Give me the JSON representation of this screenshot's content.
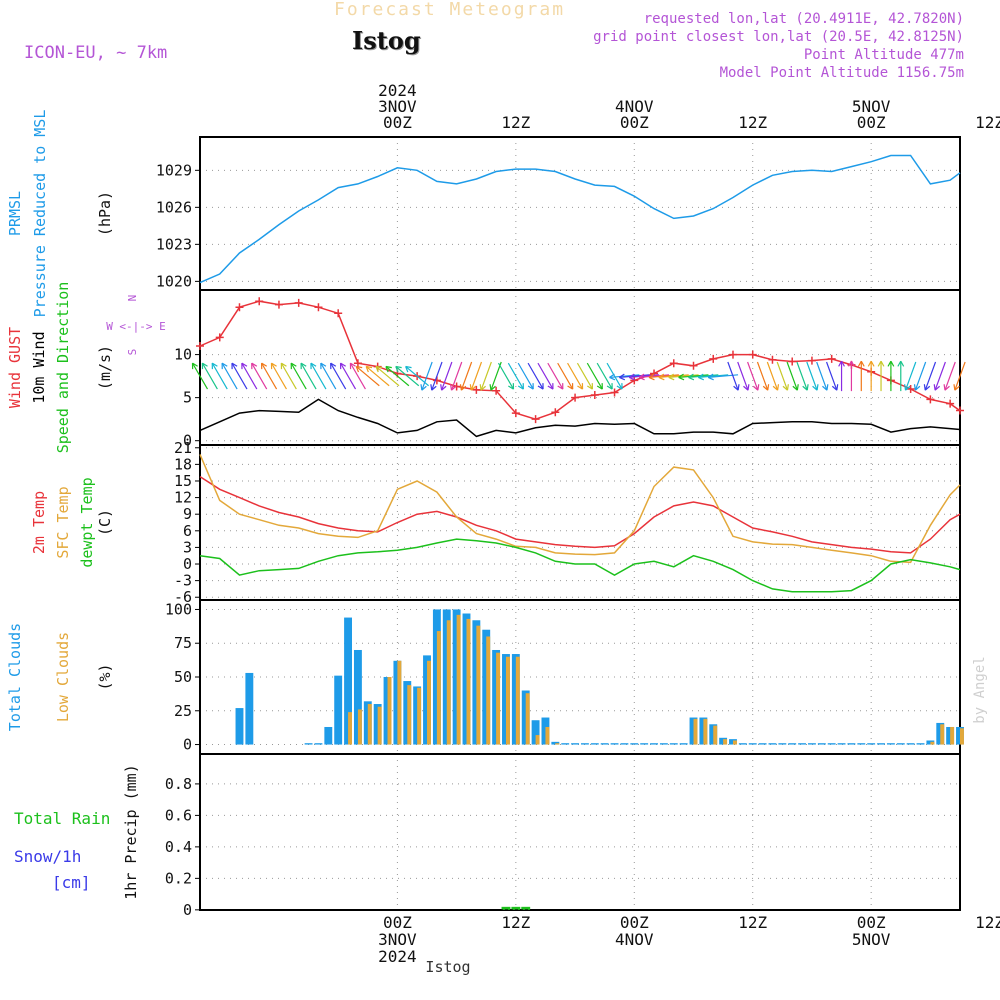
{
  "header": {
    "faint_title": "Forecast Meteogram",
    "station": "Istog",
    "model": "ICON-EU, ~ 7km",
    "info_lines": [
      "requested lon,lat (20.4911E, 42.7820N)",
      "grid point closest lon,lat (20.5E, 42.8125N)",
      "Point Altitude 477m",
      "Model Point Altitude 1156.75m"
    ]
  },
  "footer": {
    "station_label": "Istog",
    "watermark": "by Angel"
  },
  "time_axis": {
    "start_hour": -20,
    "end_hour": 57,
    "top_labels": [
      {
        "hour": 0,
        "lines": [
          "2024",
          "3NOV",
          "00Z"
        ]
      },
      {
        "hour": 12,
        "lines": [
          "12Z"
        ]
      },
      {
        "hour": 24,
        "lines": [
          "4NOV",
          "00Z"
        ]
      },
      {
        "hour": 36,
        "lines": [
          "12Z"
        ]
      },
      {
        "hour": 48,
        "lines": [
          "5NOV",
          "00Z"
        ]
      },
      {
        "hour": 60,
        "lines": [
          "12Z"
        ]
      }
    ],
    "bottom_labels": [
      {
        "hour": 0,
        "lines": [
          "00Z",
          "3NOV",
          "2024"
        ]
      },
      {
        "hour": 12,
        "lines": [
          "12Z"
        ]
      },
      {
        "hour": 24,
        "lines": [
          "00Z",
          "4NOV"
        ]
      },
      {
        "hour": 36,
        "lines": [
          "12Z"
        ]
      },
      {
        "hour": 48,
        "lines": [
          "00Z",
          "5NOV"
        ]
      },
      {
        "hour": 60,
        "lines": [
          "12Z"
        ]
      }
    ]
  },
  "colors": {
    "pressure": "#1e9be8",
    "gust": "#e8333a",
    "wind": "#000000",
    "dir_label": "#1cc01c",
    "temp2m": "#e8333a",
    "sfc": "#e3a83a",
    "dew": "#1cc01c",
    "total_cloud": "#1e9be8",
    "low_cloud": "#e3a83a",
    "rain": "#1cc01c",
    "snow": "#3a3ae8",
    "compass": "#b455d6"
  },
  "chart_data": [
    {
      "type": "line",
      "title": "PRMSL Pressure Reduced to MSL",
      "ylabels": [
        "PRMSL",
        "Pressure Reduced to MSL"
      ],
      "unit": "(hPa)",
      "ylim": [
        1019.3,
        1031.7
      ],
      "yticks": [
        1020,
        1023,
        1026,
        1029
      ],
      "series": [
        {
          "name": "PRMSL",
          "color": "#1e9be8",
          "hours": [
            -20,
            -18,
            -16,
            -14,
            -12,
            -10,
            -8,
            -6,
            -4,
            -2,
            0,
            2,
            4,
            6,
            8,
            10,
            12,
            14,
            16,
            18,
            20,
            22,
            24,
            26,
            28,
            30,
            32,
            34,
            36,
            38,
            40,
            42,
            44,
            46,
            48,
            50,
            52,
            54,
            56,
            57
          ],
          "values": [
            1019.9,
            1020.6,
            1022.3,
            1023.4,
            1024.6,
            1025.7,
            1026.6,
            1027.6,
            1027.9,
            1028.5,
            1029.2,
            1029.0,
            1028.1,
            1027.9,
            1028.3,
            1028.9,
            1029.1,
            1029.1,
            1028.9,
            1028.3,
            1027.8,
            1027.7,
            1026.9,
            1025.9,
            1025.1,
            1025.3,
            1025.9,
            1026.8,
            1027.8,
            1028.6,
            1028.9,
            1029.0,
            1028.9,
            1029.3,
            1029.7,
            1030.2,
            1030.2,
            1027.9,
            1028.2,
            1028.8
          ]
        }
      ]
    },
    {
      "type": "line",
      "title": "Wind GUST / 10m Wind Speed and Direction",
      "ylabels": [
        "Wind GUST",
        "10m Wind",
        "Speed and Direction"
      ],
      "unit": "(m/s)",
      "ylim": [
        -0.5,
        17.5
      ],
      "yticks": [
        0,
        5,
        10
      ],
      "compass": [
        "N",
        "W <-|-> E",
        "S"
      ],
      "series": [
        {
          "name": "Wind GUST",
          "color": "#e8333a",
          "marker": "+",
          "hours": [
            -20,
            -18,
            -16,
            -14,
            -12,
            -10,
            -8,
            -6,
            -4,
            -2,
            0,
            2,
            4,
            6,
            8,
            10,
            12,
            14,
            16,
            18,
            20,
            22,
            24,
            26,
            28,
            30,
            32,
            34,
            36,
            38,
            40,
            42,
            44,
            46,
            48,
            50,
            52,
            54,
            56,
            57
          ],
          "values": [
            11.0,
            12.0,
            15.5,
            16.2,
            15.8,
            16.0,
            15.5,
            14.8,
            9.0,
            8.6,
            7.8,
            7.5,
            7.0,
            6.3,
            5.9,
            5.8,
            3.2,
            2.5,
            3.3,
            5.0,
            5.3,
            5.6,
            7.0,
            7.8,
            9.0,
            8.7,
            9.5,
            10.0,
            10.0,
            9.4,
            9.2,
            9.3,
            9.5,
            8.8,
            8.0,
            7.0,
            6.0,
            4.8,
            4.3,
            3.5
          ]
        },
        {
          "name": "10m Wind",
          "color": "#000000",
          "hours": [
            -20,
            -18,
            -16,
            -14,
            -12,
            -10,
            -8,
            -6,
            -4,
            -2,
            0,
            2,
            4,
            6,
            8,
            10,
            12,
            14,
            16,
            18,
            20,
            22,
            24,
            26,
            28,
            30,
            32,
            34,
            36,
            38,
            40,
            42,
            44,
            46,
            48,
            50,
            52,
            54,
            56,
            57
          ],
          "values": [
            1.2,
            2.2,
            3.2,
            3.5,
            3.4,
            3.3,
            4.8,
            3.5,
            2.7,
            2.0,
            0.9,
            1.2,
            2.2,
            2.4,
            0.5,
            1.2,
            0.9,
            1.5,
            1.8,
            1.7,
            2.0,
            1.9,
            2.0,
            0.8,
            0.8,
            1.0,
            1.0,
            0.8,
            2.0,
            2.1,
            2.2,
            2.2,
            2.0,
            2.0,
            1.9,
            1.0,
            1.4,
            1.6,
            1.4,
            1.3
          ]
        }
      ]
    },
    {
      "type": "line",
      "title": "2m Temp / SFC Temp / dewpt Temp",
      "ylabels": [
        "2m Temp",
        "SFC Temp",
        "dewpt Temp"
      ],
      "unit": "(C)",
      "ylim": [
        -6.5,
        21.5
      ],
      "yticks": [
        -6,
        -3,
        0,
        3,
        6,
        9,
        12,
        15,
        18,
        21
      ],
      "series": [
        {
          "name": "2m Temp",
          "color": "#e8333a",
          "hours": [
            -20,
            -18,
            -16,
            -14,
            -12,
            -10,
            -8,
            -6,
            -4,
            -2,
            0,
            2,
            4,
            6,
            8,
            10,
            12,
            14,
            16,
            18,
            20,
            22,
            24,
            26,
            28,
            30,
            32,
            34,
            36,
            38,
            40,
            42,
            44,
            46,
            48,
            50,
            52,
            54,
            56,
            57
          ],
          "values": [
            15.8,
            13.5,
            12.0,
            10.5,
            9.3,
            8.5,
            7.3,
            6.5,
            6.0,
            5.8,
            7.5,
            9.0,
            9.5,
            8.5,
            7.0,
            6.0,
            4.5,
            4.0,
            3.5,
            3.2,
            3.0,
            3.3,
            5.5,
            8.5,
            10.5,
            11.2,
            10.5,
            8.5,
            6.5,
            5.8,
            5.0,
            4.0,
            3.5,
            3.0,
            2.7,
            2.2,
            2.0,
            4.5,
            8.0,
            9.0
          ]
        },
        {
          "name": "SFC Temp",
          "color": "#e3a83a",
          "hours": [
            -20,
            -18,
            -16,
            -14,
            -12,
            -10,
            -8,
            -6,
            -4,
            -2,
            0,
            2,
            4,
            6,
            8,
            10,
            12,
            14,
            16,
            18,
            20,
            22,
            24,
            26,
            28,
            30,
            32,
            34,
            36,
            38,
            40,
            42,
            44,
            46,
            48,
            50,
            52,
            54,
            56,
            57
          ],
          "values": [
            19.8,
            11.5,
            9.0,
            8.0,
            7.0,
            6.5,
            5.5,
            5.0,
            4.8,
            6.0,
            13.5,
            15.0,
            13.0,
            8.5,
            5.5,
            4.5,
            3.2,
            3.0,
            2.0,
            1.8,
            1.7,
            2.0,
            6.0,
            14.0,
            17.5,
            17.0,
            12.0,
            5.0,
            4.0,
            3.6,
            3.5,
            3.0,
            2.5,
            2.0,
            1.5,
            0.5,
            0.3,
            7.0,
            12.5,
            14.3
          ]
        },
        {
          "name": "dewpt Temp",
          "color": "#1cc01c",
          "hours": [
            -20,
            -18,
            -16,
            -14,
            -12,
            -10,
            -8,
            -6,
            -4,
            -2,
            0,
            2,
            4,
            6,
            8,
            10,
            12,
            14,
            16,
            18,
            20,
            22,
            24,
            26,
            28,
            30,
            32,
            34,
            36,
            38,
            40,
            42,
            44,
            46,
            48,
            50,
            52,
            54,
            56,
            57
          ],
          "values": [
            1.5,
            1.0,
            -2.0,
            -1.2,
            -1.0,
            -0.8,
            0.5,
            1.5,
            2.0,
            2.2,
            2.5,
            3.0,
            3.8,
            4.5,
            4.2,
            3.8,
            3.0,
            2.0,
            0.5,
            0.0,
            0.0,
            -2.0,
            0.0,
            0.5,
            -0.5,
            1.5,
            0.5,
            -1.0,
            -3.0,
            -4.5,
            -5.0,
            -5.0,
            -5.0,
            -4.8,
            -3.0,
            0.0,
            0.8,
            0.2,
            -0.5,
            -1.0
          ]
        }
      ]
    },
    {
      "type": "bar",
      "title": "Total Clouds / Low Clouds",
      "ylabels": [
        "Total Clouds",
        "Low Clouds"
      ],
      "unit": "(%)",
      "ylim": [
        -7,
        107
      ],
      "yticks": [
        0,
        25,
        50,
        75,
        100
      ],
      "hours": [
        -20,
        -19,
        -18,
        -17,
        -16,
        -15,
        -14,
        -13,
        -12,
        -11,
        -10,
        -9,
        -8,
        -7,
        -6,
        -5,
        -4,
        -3,
        -2,
        -1,
        0,
        1,
        2,
        3,
        4,
        5,
        6,
        7,
        8,
        9,
        10,
        11,
        12,
        13,
        14,
        15,
        16,
        17,
        18,
        19,
        20,
        21,
        22,
        23,
        24,
        25,
        26,
        27,
        28,
        29,
        30,
        31,
        32,
        33,
        34,
        35,
        36,
        37,
        38,
        39,
        40,
        41,
        42,
        43,
        44,
        45,
        46,
        47,
        48,
        49,
        50,
        51,
        52,
        53,
        54,
        55,
        56,
        57
      ],
      "series": [
        {
          "name": "Total Clouds",
          "color": "#1e9be8",
          "values": [
            0,
            0,
            0,
            0,
            27,
            53,
            0,
            0,
            0,
            0,
            0,
            1,
            1,
            13,
            51,
            94,
            70,
            32,
            30,
            50,
            62,
            47,
            43,
            66,
            100,
            100,
            100,
            97,
            92,
            85,
            70,
            67,
            67,
            40,
            18,
            20,
            2,
            1,
            1,
            1,
            1,
            1,
            1,
            1,
            1,
            1,
            1,
            1,
            1,
            1,
            20,
            20,
            15,
            5,
            4,
            1,
            1,
            1,
            1,
            1,
            1,
            1,
            1,
            1,
            1,
            1,
            1,
            1,
            1,
            1,
            1,
            1,
            1,
            1,
            3,
            16,
            13,
            13
          ]
        },
        {
          "name": "Low Clouds",
          "color": "#e3a83a",
          "values": [
            0,
            0,
            0,
            0,
            0,
            0,
            0,
            0,
            0,
            0,
            0,
            0,
            0,
            0,
            0,
            24,
            26,
            30,
            28,
            50,
            62,
            44,
            42,
            62,
            84,
            92,
            96,
            93,
            88,
            80,
            68,
            65,
            65,
            38,
            7,
            13,
            1,
            0,
            0,
            0,
            0,
            0,
            0,
            0,
            0,
            0,
            0,
            0,
            0,
            0,
            19,
            19,
            14,
            4,
            3,
            0,
            0,
            0,
            0,
            0,
            0,
            0,
            0,
            0,
            0,
            0,
            0,
            0,
            0,
            0,
            0,
            0,
            0,
            0,
            2,
            15,
            13,
            12
          ]
        }
      ]
    },
    {
      "type": "bar",
      "title": "Total Rain / Snow 1hr Precip",
      "ylabels": [
        "Total  Rain",
        "Snow/1h",
        "[cm]"
      ],
      "unit": "1hr Precip (mm)",
      "ylim": [
        -0.001,
        0.99
      ],
      "yticks": [
        0,
        0.2,
        0.4,
        0.6,
        0.8
      ],
      "hours": [
        11,
        12,
        13
      ],
      "series": [
        {
          "name": "Total Rain",
          "color": "#1cc01c",
          "values": [
            0.02,
            0.02,
            0.015
          ]
        },
        {
          "name": "Snow",
          "color": "#3a3ae8",
          "values": [
            0,
            0,
            0
          ]
        }
      ]
    }
  ]
}
